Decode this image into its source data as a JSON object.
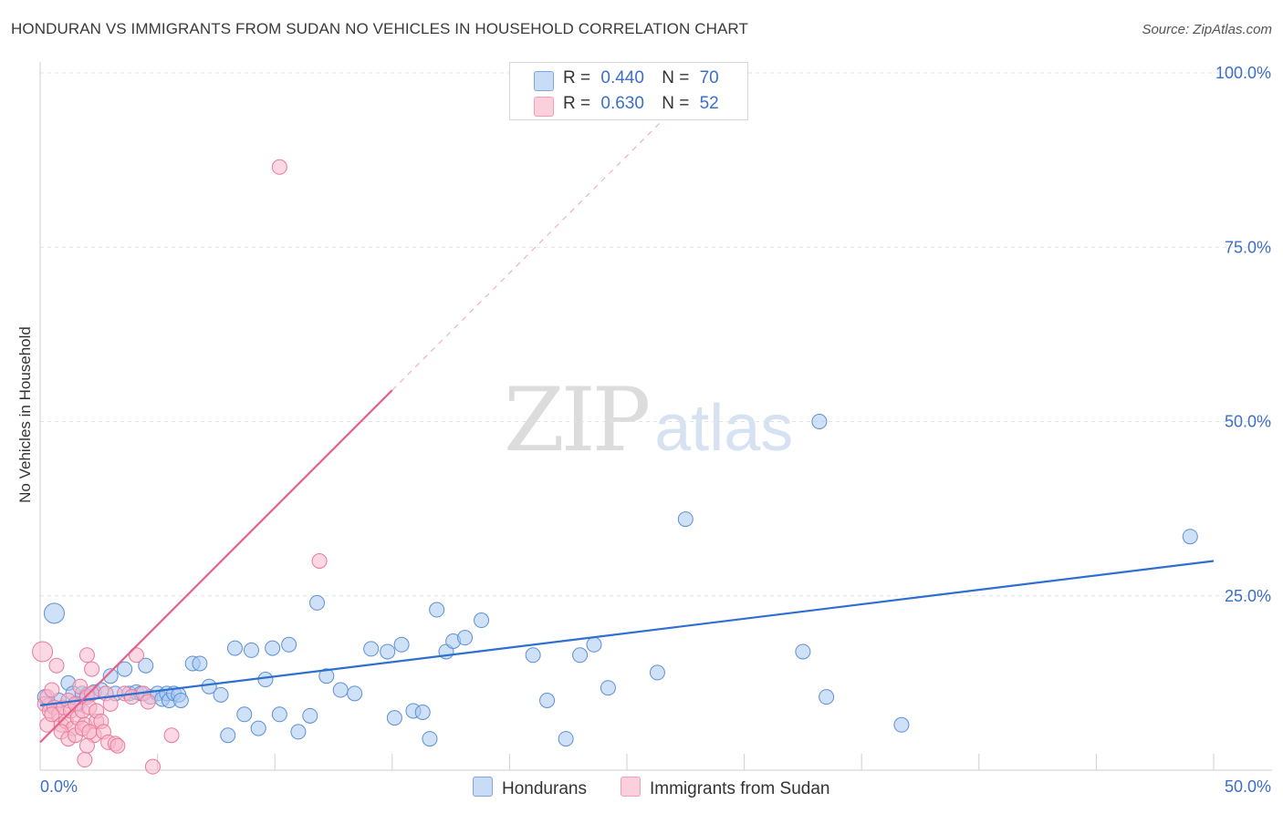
{
  "header": {
    "title": "HONDURAN VS IMMIGRANTS FROM SUDAN NO VEHICLES IN HOUSEHOLD CORRELATION CHART",
    "source": "Source: ZipAtlas.com"
  },
  "watermark": {
    "zip": "ZIP",
    "atlas": "atlas"
  },
  "legend": {
    "rows": [
      {
        "r_label": "R =",
        "r_value": "0.440",
        "n_label": "N =",
        "n_value": "70",
        "color": "#a8c8f0"
      },
      {
        "r_label": "R =",
        "r_value": "0.630",
        "n_label": "N =",
        "n_value": "52",
        "color": "#f8b8cc"
      }
    ]
  },
  "chart_data": {
    "type": "scatter",
    "title": "HONDURAN VS IMMIGRANTS FROM SUDAN NO VEHICLES IN HOUSEHOLD CORRELATION CHART",
    "xlabel": "",
    "ylabel": "No Vehicles in Household",
    "xlim": [
      0,
      50
    ],
    "ylim": [
      0,
      100
    ],
    "x_tick_labels": [
      "0.0%",
      "50.0%"
    ],
    "y_tick_labels": [
      "100.0%",
      "75.0%",
      "50.0%",
      "25.0%"
    ],
    "y_ticks": [
      100,
      75,
      50,
      25
    ],
    "grid": true,
    "legend_position": "bottom",
    "series": [
      {
        "name": "Hondurans",
        "color": "#a8c8f0",
        "stroke": "#5d8fd6",
        "trend_color": "#2e6fd0",
        "trend": {
          "x": [
            0,
            50
          ],
          "y": [
            9.3,
            30.0
          ]
        },
        "points": [
          [
            0.2,
            10.5
          ],
          [
            0.4,
            9.4
          ],
          [
            0.6,
            22.5
          ],
          [
            0.8,
            10.0
          ],
          [
            1.2,
            12.5
          ],
          [
            1.4,
            11.0
          ],
          [
            1.6,
            9.5
          ],
          [
            1.8,
            11.0
          ],
          [
            2.0,
            10.8
          ],
          [
            2.3,
            11.2
          ],
          [
            2.6,
            11.5
          ],
          [
            3.0,
            13.5
          ],
          [
            3.2,
            11.0
          ],
          [
            3.6,
            14.5
          ],
          [
            3.8,
            11.0
          ],
          [
            4.1,
            11.2
          ],
          [
            4.3,
            11.0
          ],
          [
            4.5,
            15.0
          ],
          [
            4.7,
            10.5
          ],
          [
            5.0,
            11.0
          ],
          [
            5.2,
            10.2
          ],
          [
            5.4,
            11.0
          ],
          [
            5.5,
            10.0
          ],
          [
            5.7,
            11.0
          ],
          [
            5.9,
            10.8
          ],
          [
            6.0,
            10.0
          ],
          [
            6.5,
            15.3
          ],
          [
            6.8,
            15.3
          ],
          [
            7.2,
            12.0
          ],
          [
            7.7,
            10.8
          ],
          [
            8.0,
            5.0
          ],
          [
            8.3,
            17.5
          ],
          [
            8.7,
            8.0
          ],
          [
            9.0,
            17.2
          ],
          [
            9.3,
            6.0
          ],
          [
            9.6,
            13.0
          ],
          [
            9.9,
            17.5
          ],
          [
            10.2,
            8.0
          ],
          [
            10.6,
            18.0
          ],
          [
            11.0,
            5.5
          ],
          [
            11.5,
            7.8
          ],
          [
            11.8,
            24.0
          ],
          [
            12.2,
            13.5
          ],
          [
            12.8,
            11.5
          ],
          [
            13.4,
            11.0
          ],
          [
            14.1,
            17.4
          ],
          [
            14.8,
            17.0
          ],
          [
            15.1,
            7.5
          ],
          [
            15.4,
            18.0
          ],
          [
            15.9,
            8.5
          ],
          [
            16.3,
            8.3
          ],
          [
            16.6,
            4.5
          ],
          [
            16.9,
            23.0
          ],
          [
            17.3,
            17.0
          ],
          [
            17.6,
            18.5
          ],
          [
            18.1,
            19.0
          ],
          [
            18.8,
            21.5
          ],
          [
            21.0,
            16.5
          ],
          [
            21.6,
            10.0
          ],
          [
            22.4,
            4.5
          ],
          [
            23.0,
            16.5
          ],
          [
            23.6,
            18.0
          ],
          [
            24.2,
            11.8
          ],
          [
            26.3,
            14.0
          ],
          [
            27.5,
            36.0
          ],
          [
            32.5,
            17.0
          ],
          [
            33.2,
            50.0
          ],
          [
            33.5,
            10.5
          ],
          [
            36.7,
            6.5
          ],
          [
            49.0,
            33.5
          ]
        ]
      },
      {
        "name": "Immigrants from Sudan",
        "color": "#f8b8cc",
        "stroke": "#e97a9a",
        "trend_color": "#e8608a",
        "trend": {
          "x": [
            0,
            15
          ],
          "y": [
            4.0,
            54.5
          ]
        },
        "trend_dashed": {
          "x": [
            15,
            27.5
          ],
          "y": [
            54.5,
            96.5
          ]
        },
        "points": [
          [
            0.1,
            17.0
          ],
          [
            0.2,
            9.5
          ],
          [
            0.3,
            10.5
          ],
          [
            0.4,
            8.5
          ],
          [
            0.5,
            11.5
          ],
          [
            0.6,
            9.0
          ],
          [
            0.7,
            15.0
          ],
          [
            0.8,
            8.0
          ],
          [
            0.9,
            6.5
          ],
          [
            1.0,
            9.0
          ],
          [
            1.1,
            7.0
          ],
          [
            1.2,
            10.0
          ],
          [
            1.3,
            8.5
          ],
          [
            1.4,
            6.0
          ],
          [
            1.5,
            9.5
          ],
          [
            1.6,
            7.5
          ],
          [
            1.7,
            12.0
          ],
          [
            1.8,
            8.5
          ],
          [
            1.9,
            6.5
          ],
          [
            2.0,
            10.5
          ],
          [
            2.1,
            9.0
          ],
          [
            2.2,
            11.0
          ],
          [
            2.3,
            5.0
          ],
          [
            2.4,
            7.0
          ],
          [
            0.3,
            6.5
          ],
          [
            0.5,
            8.0
          ],
          [
            0.9,
            5.5
          ],
          [
            1.2,
            4.5
          ],
          [
            1.5,
            5.0
          ],
          [
            1.8,
            6.0
          ],
          [
            2.0,
            3.5
          ],
          [
            2.1,
            5.5
          ],
          [
            1.9,
            1.5
          ],
          [
            2.0,
            16.5
          ],
          [
            2.2,
            14.5
          ],
          [
            2.4,
            8.5
          ],
          [
            2.6,
            7.0
          ],
          [
            2.7,
            5.5
          ],
          [
            2.8,
            11.0
          ],
          [
            3.0,
            9.5
          ],
          [
            2.9,
            4.0
          ],
          [
            3.2,
            3.8
          ],
          [
            3.3,
            3.5
          ],
          [
            3.6,
            11.0
          ],
          [
            3.9,
            10.5
          ],
          [
            4.1,
            16.5
          ],
          [
            4.4,
            11.0
          ],
          [
            4.6,
            9.8
          ],
          [
            4.8,
            0.5
          ],
          [
            5.6,
            5.0
          ],
          [
            10.2,
            86.5
          ],
          [
            11.9,
            30.0
          ]
        ]
      }
    ]
  }
}
